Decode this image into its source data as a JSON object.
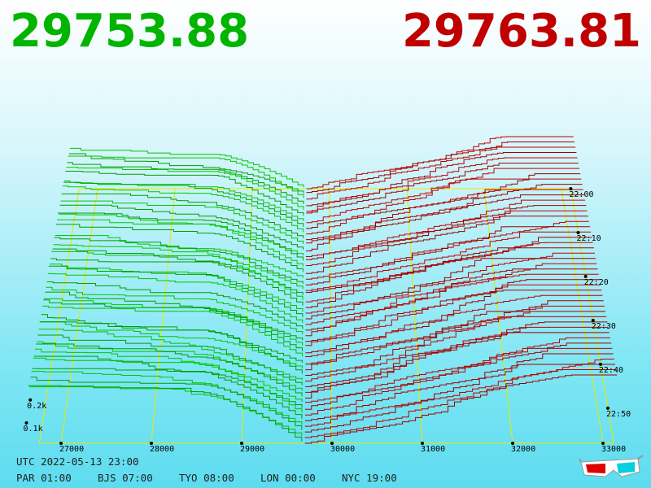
{
  "header": {
    "bid": "29753.88",
    "ask": "29763.81"
  },
  "chart": {
    "price_ticks": [
      27000,
      28000,
      29000,
      30000,
      31000,
      32000,
      33000
    ],
    "time_ticks": [
      "22:00",
      "22:10",
      "22:20",
      "22:30",
      "22:40",
      "22:50"
    ],
    "depth_ticks": [
      {
        "value": 200,
        "label": "0.2k"
      },
      {
        "value": 100,
        "label": "0.1k"
      }
    ]
  },
  "footer": {
    "utc": "UTC 2022-05-13 23:00",
    "cities": [
      "PAR 01:00",
      "BJS 07:00",
      "TYO 08:00",
      "LON 00:00",
      "NYC 19:00"
    ]
  }
}
